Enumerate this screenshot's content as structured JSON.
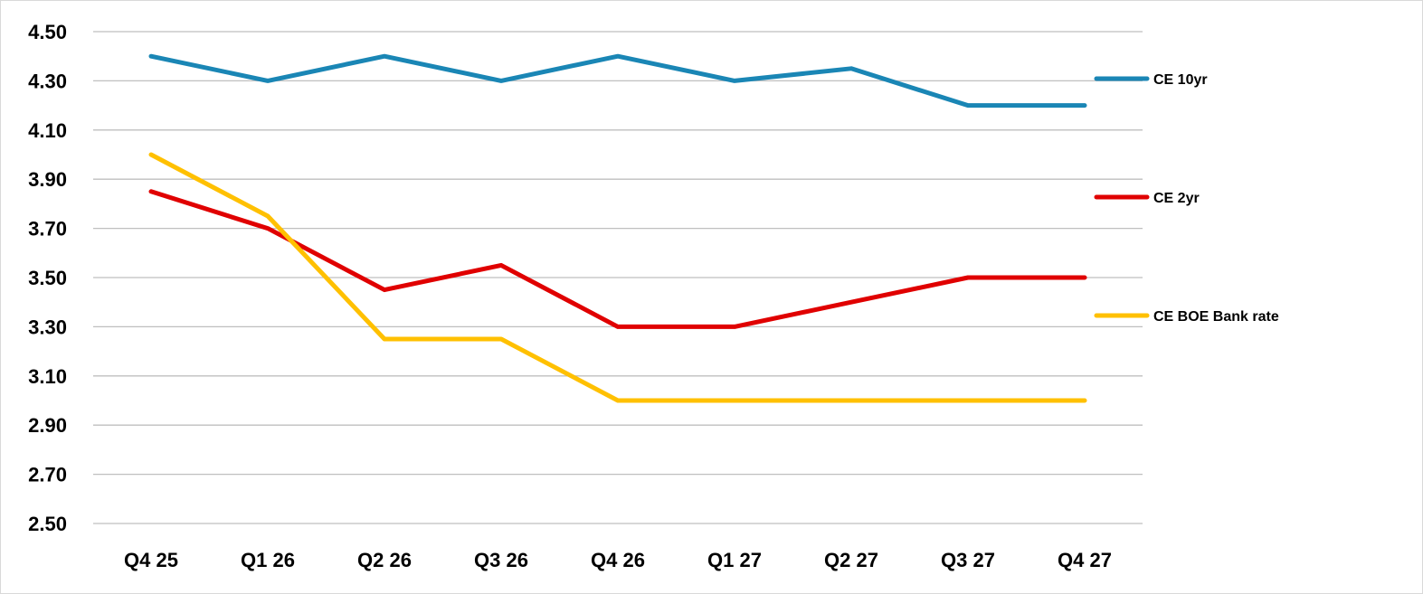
{
  "chart_data": {
    "type": "line",
    "title": "",
    "xlabel": "",
    "ylabel": "",
    "categories": [
      "Q4 25",
      "Q1 26",
      "Q2 26",
      "Q3 26",
      "Q4 26",
      "Q1 27",
      "Q2 27",
      "Q3 27",
      "Q4 27"
    ],
    "ylim": [
      2.5,
      4.5
    ],
    "yticks": [
      "4.50",
      "4.30",
      "4.10",
      "3.90",
      "3.70",
      "3.50",
      "3.30",
      "3.10",
      "2.90",
      "2.70",
      "2.50"
    ],
    "grid": true,
    "legend_position": "right",
    "series": [
      {
        "name": "CE 10yr",
        "color": "#1a86b5",
        "values": [
          4.4,
          4.3,
          4.4,
          4.3,
          4.4,
          4.3,
          4.35,
          4.2,
          4.2
        ]
      },
      {
        "name": "CE 2yr",
        "color": "#e00000",
        "values": [
          3.85,
          3.7,
          3.45,
          3.55,
          3.3,
          3.3,
          3.4,
          3.5,
          3.5
        ]
      },
      {
        "name": "CE BOE Bank rate",
        "color": "#ffc000",
        "values": [
          4.0,
          3.75,
          3.25,
          3.25,
          3.0,
          3.0,
          3.0,
          3.0,
          3.0
        ]
      }
    ]
  }
}
